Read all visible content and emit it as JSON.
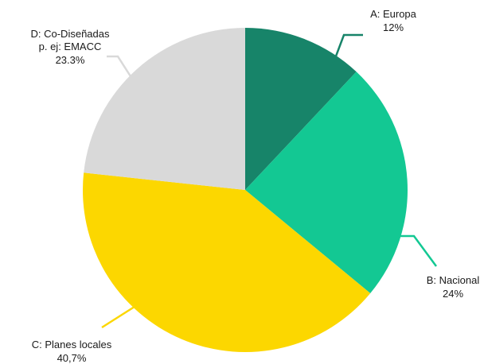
{
  "chart_data": {
    "type": "pie",
    "slices": [
      {
        "category": "A: Europa",
        "label_lines": [
          "A: Europa"
        ],
        "value": 12,
        "value_label": "12%",
        "color": "#178469"
      },
      {
        "category": "B: Nacional",
        "label_lines": [
          "B: Nacional"
        ],
        "value": 24,
        "value_label": "24%",
        "color": "#13c893"
      },
      {
        "category": "C: Planes locales",
        "label_lines": [
          "C: Planes locales"
        ],
        "value": 40.7,
        "value_label": "40,7%",
        "color": "#fcd700"
      },
      {
        "category": "D: Co-Diseñadas p. ej: EMACC",
        "label_lines": [
          "D: Co-Diseñadas",
          "p. ej: EMACC"
        ],
        "value": 23.3,
        "value_label": "23.3%",
        "color": "#d9d9d9"
      }
    ]
  }
}
